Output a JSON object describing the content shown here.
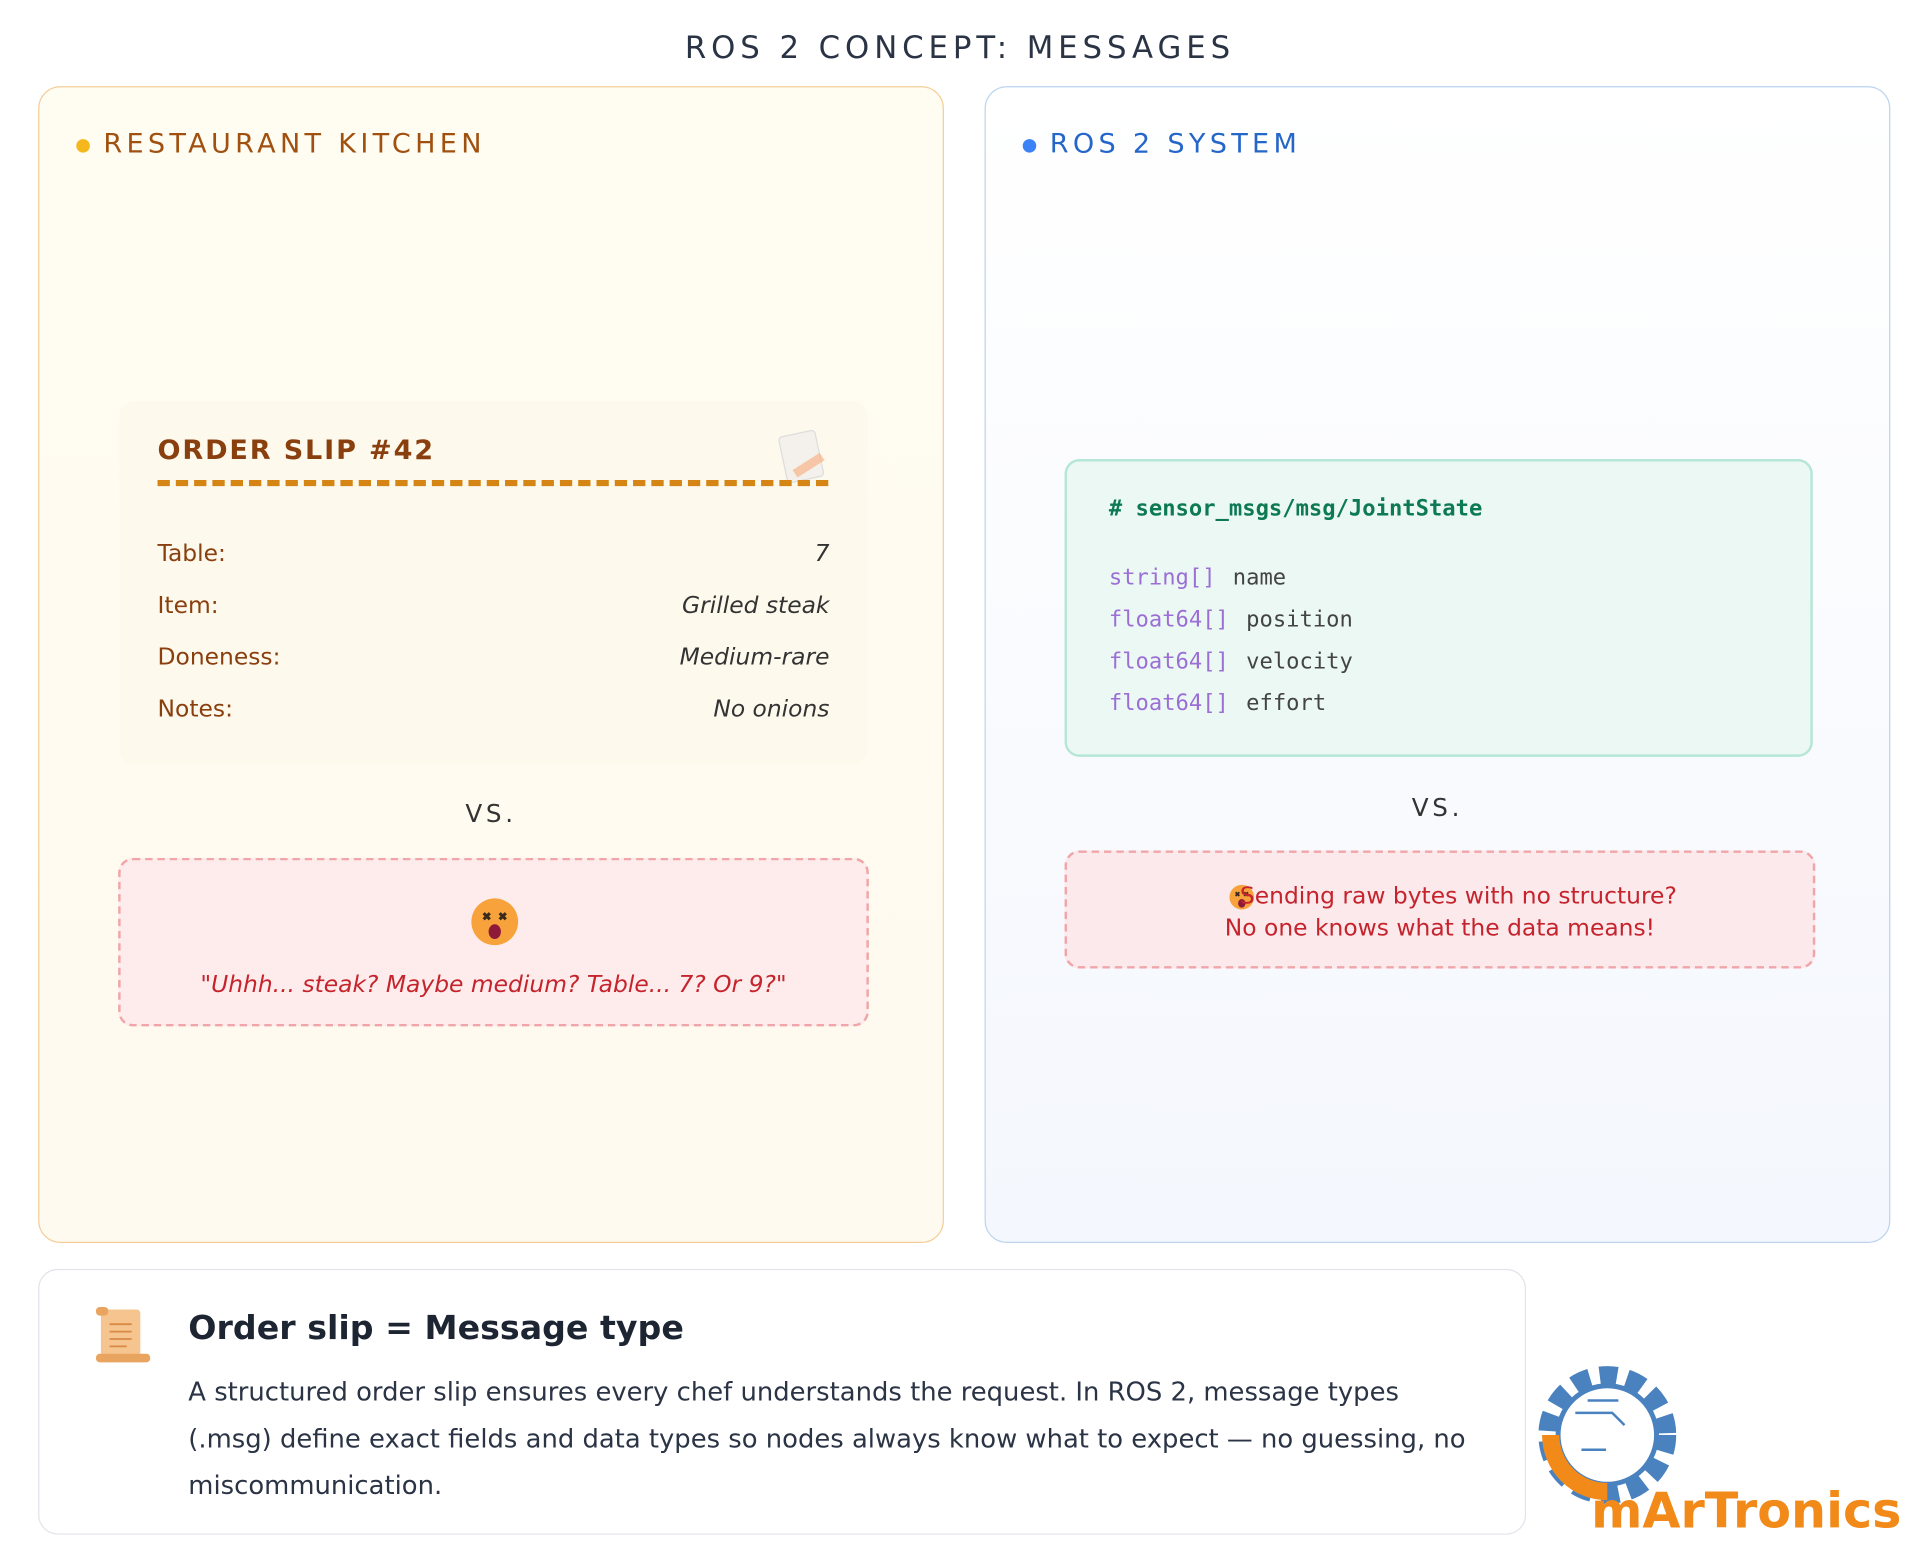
{
  "header": {
    "title": "ROS 2 CONCEPT: MESSAGES"
  },
  "left_panel": {
    "label": "RESTAURANT KITCHEN",
    "slip": {
      "title": "ORDER SLIP #42",
      "rows": [
        [
          "Table:",
          "7"
        ],
        [
          "Item:",
          "Grilled steak"
        ],
        [
          "Doneness:",
          "Medium-rare"
        ],
        [
          "Notes:",
          "No onions"
        ]
      ]
    },
    "vs": "VS.",
    "bad": {
      "quote": "\"Uhhh... steak? Maybe medium? Table... 7? Or 9?\""
    }
  },
  "right_panel": {
    "label": "ROS 2 SYSTEM",
    "code": {
      "header": "# sensor_msgs/msg/JointState",
      "lines": [
        [
          "string[]",
          "name"
        ],
        [
          "float64[]",
          "position"
        ],
        [
          "float64[]",
          "velocity"
        ],
        [
          "float64[]",
          "effort"
        ]
      ]
    },
    "vs": "VS.",
    "bad": {
      "lines": [
        "Sending raw bytes with no structure?",
        "No one knows what the data means!"
      ]
    }
  },
  "summary": {
    "title": "Order slip = Message type",
    "body": "A structured order slip ensures every chef understands the request. In ROS 2, message types (.msg) define exact fields and data types so nodes always know what to expect — no guessing, no miscommunication."
  },
  "logo": {
    "text": "mArTronics"
  }
}
